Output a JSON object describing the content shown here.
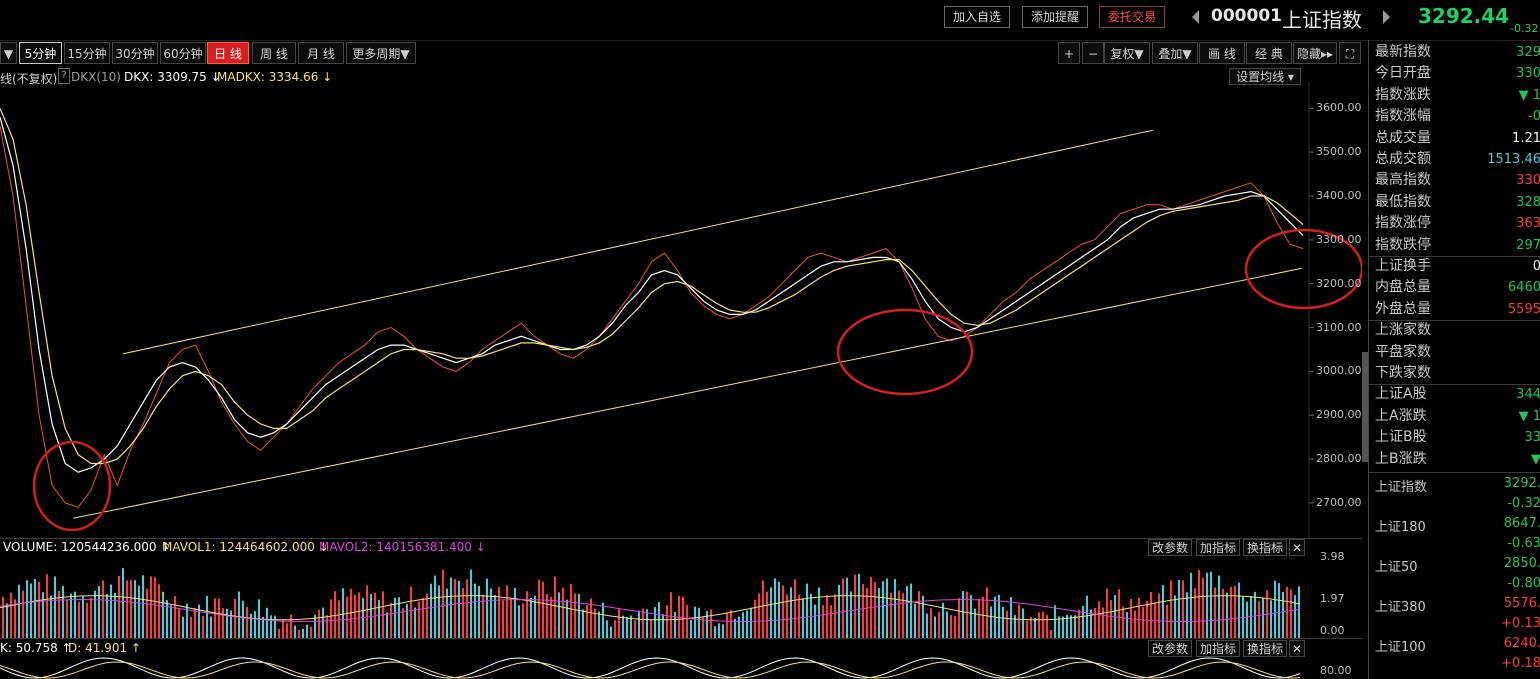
{
  "colors": {
    "up": "#ff3b3b",
    "down": "#22c55e",
    "price_line": "#e8553a",
    "ma_white": "#ffffff",
    "ma_yellow": "#f5e36a",
    "channel": "#f0e080",
    "circle": "#d21f1f",
    "magenta": "#e040e0",
    "cyan": "#40d0e0"
  },
  "top": {
    "buttons": [
      "加入自选",
      "添加提醒",
      "委托交易"
    ],
    "symbol_code": "000001",
    "symbol_name": "上证指数",
    "price": "3292.44",
    "change": "-0.32"
  },
  "periods": [
    "▼",
    "5分钟",
    "15分钟",
    "30分钟",
    "60分钟",
    "日 线",
    "周 线",
    "月 线",
    "更多周期▼"
  ],
  "tools": [
    "+",
    "−",
    "复权▼",
    "叠加▼",
    "画 线",
    "经 典",
    "隐藏▸▸",
    "⛶"
  ],
  "indicator_main": {
    "prefix": "线(不复权)",
    "dkx_label": "DKX(10)",
    "dkx_value": "DKX: 3309.75 ↓",
    "madkx_value": "MADKX: 3334.66 ↓",
    "settings": "设置均线 ▾"
  },
  "indicator_volume": {
    "volume": "VOLUME: 120544236.000 ↑",
    "mavol1": "MAVOL1: 124464602.000 ↓",
    "mavol2": "MAVOL2: 140156381.400 ↓"
  },
  "indicator_kd": {
    "k": "K: 50.758 ↑",
    "d": "D: 41.901 ↑"
  },
  "panel_buttons": [
    "改参数",
    "加指标",
    "换指标",
    "✕"
  ],
  "price_axis": [
    "3600.00",
    "3500.00",
    "3400.00",
    "3300.00",
    "3200.00",
    "3100.00",
    "3000.00",
    "2900.00",
    "2800.00",
    "2700.00"
  ],
  "volume_axis": [
    "3.98",
    "1.97",
    "0.00"
  ],
  "kd_axis": [
    "80.00"
  ],
  "right_panel": {
    "stats": [
      {
        "label": "最新指数",
        "value": "329",
        "color": "down"
      },
      {
        "label": "今日开盘",
        "value": "330",
        "color": "down"
      },
      {
        "label": "指数涨跌",
        "value": "▼ 1",
        "color": "down"
      },
      {
        "label": "指数涨幅",
        "value": "-0",
        "color": "down"
      },
      {
        "label": "总成交量",
        "value": "1.21",
        "color": "plain"
      },
      {
        "label": "总成交额",
        "value": "1513.46",
        "color": "cyan"
      },
      {
        "label": "最高指数",
        "value": "330",
        "color": "up"
      },
      {
        "label": "最低指数",
        "value": "328",
        "color": "down"
      },
      {
        "label": "指数涨停",
        "value": "363",
        "color": "up"
      },
      {
        "label": "指数跌停",
        "value": "297",
        "color": "down"
      },
      {
        "label": "上证换手",
        "value": "0",
        "color": "plain"
      },
      {
        "label": "内盘总量",
        "value": "6460",
        "color": "down"
      },
      {
        "label": "外盘总量",
        "value": "5595",
        "color": "up"
      },
      {
        "label": "上涨家数",
        "value": "",
        "color": "up"
      },
      {
        "label": "平盘家数",
        "value": "",
        "color": "plain"
      },
      {
        "label": "下跌家数",
        "value": "",
        "color": "down"
      },
      {
        "label": "上证A股",
        "value": "344",
        "color": "down"
      },
      {
        "label": "上A涨跌",
        "value": "▼ 1",
        "color": "down"
      },
      {
        "label": "上证B股",
        "value": "33",
        "color": "down"
      },
      {
        "label": "上B涨跌",
        "value": "▼",
        "color": "down"
      }
    ],
    "indices": [
      {
        "name": "上证指数",
        "value": "3292.",
        "change": "-0.32",
        "color": "down"
      },
      {
        "name": "上证180",
        "value": "8647.",
        "change": "-0.63",
        "color": "down"
      },
      {
        "name": "上证50",
        "value": "2850.",
        "change": "-0.80",
        "color": "down"
      },
      {
        "name": "上证380",
        "value": "5576.",
        "change": "+0.13",
        "color": "up"
      },
      {
        "name": "上证100",
        "value": "6240.",
        "change": "+0.18",
        "color": "up"
      }
    ]
  },
  "chart_data": {
    "type": "line",
    "title": "",
    "ylabel": "",
    "ylim": [
      2620,
      3660
    ],
    "series": [
      {
        "name": "",
        "color": "price_line",
        "values": [
          3560,
          3400,
          3150,
          2900,
          2740,
          2700,
          2690,
          2730,
          2810,
          2740,
          2820,
          2880,
          2950,
          3020,
          3050,
          3060,
          3000,
          2930,
          2880,
          2840,
          2820,
          2850,
          2880,
          2920,
          2960,
          2990,
          3020,
          3040,
          3060,
          3090,
          3100,
          3080,
          3050,
          3030,
          3010,
          3000,
          3020,
          3050,
          3070,
          3090,
          3110,
          3080,
          3060,
          3040,
          3030,
          3050,
          3080,
          3120,
          3160,
          3200,
          3250,
          3270,
          3230,
          3180,
          3150,
          3130,
          3120,
          3130,
          3150,
          3170,
          3200,
          3230,
          3260,
          3270,
          3260,
          3250,
          3260,
          3270,
          3280,
          3250,
          3190,
          3120,
          3080,
          3070,
          3080,
          3100,
          3130,
          3160,
          3180,
          3210,
          3230,
          3250,
          3270,
          3290,
          3300,
          3330,
          3360,
          3370,
          3380,
          3380,
          3370,
          3380,
          3390,
          3400,
          3410,
          3420,
          3430,
          3400,
          3340,
          3290,
          3280
        ]
      },
      {
        "name": "DKX",
        "color": "ma_white",
        "values": [
          3580,
          3470,
          3280,
          3050,
          2880,
          2790,
          2770,
          2780,
          2800,
          2830,
          2880,
          2930,
          2980,
          3010,
          3020,
          3010,
          2980,
          2940,
          2890,
          2860,
          2850,
          2860,
          2880,
          2910,
          2940,
          2970,
          2990,
          3010,
          3030,
          3050,
          3060,
          3060,
          3050,
          3040,
          3030,
          3020,
          3030,
          3040,
          3060,
          3070,
          3080,
          3070,
          3060,
          3050,
          3050,
          3060,
          3080,
          3110,
          3150,
          3180,
          3220,
          3230,
          3220,
          3190,
          3160,
          3140,
          3130,
          3130,
          3140,
          3160,
          3180,
          3200,
          3220,
          3240,
          3250,
          3250,
          3255,
          3260,
          3260,
          3250,
          3210,
          3160,
          3120,
          3100,
          3090,
          3100,
          3120,
          3140,
          3160,
          3180,
          3200,
          3220,
          3240,
          3260,
          3280,
          3300,
          3330,
          3350,
          3360,
          3370,
          3370,
          3375,
          3380,
          3390,
          3400,
          3405,
          3410,
          3400,
          3370,
          3340,
          3310
        ]
      },
      {
        "name": "MADKX",
        "color": "ma_yellow",
        "values": [
          3600,
          3530,
          3380,
          3180,
          2990,
          2870,
          2810,
          2790,
          2790,
          2800,
          2830,
          2870,
          2920,
          2960,
          2990,
          3000,
          2990,
          2970,
          2930,
          2900,
          2880,
          2870,
          2870,
          2890,
          2910,
          2940,
          2960,
          2980,
          3000,
          3020,
          3040,
          3050,
          3050,
          3045,
          3040,
          3030,
          3030,
          3035,
          3045,
          3055,
          3065,
          3065,
          3060,
          3055,
          3050,
          3055,
          3065,
          3085,
          3115,
          3145,
          3180,
          3200,
          3205,
          3195,
          3175,
          3155,
          3140,
          3135,
          3135,
          3145,
          3160,
          3175,
          3195,
          3215,
          3230,
          3240,
          3245,
          3250,
          3255,
          3255,
          3230,
          3195,
          3160,
          3130,
          3110,
          3105,
          3110,
          3125,
          3140,
          3160,
          3180,
          3200,
          3220,
          3240,
          3260,
          3280,
          3300,
          3320,
          3340,
          3355,
          3365,
          3370,
          3375,
          3380,
          3385,
          3390,
          3400,
          3400,
          3385,
          3360,
          3335
        ]
      },
      {
        "name": "",
        "color": "channel",
        "values": [
          3040,
          3550
        ]
      },
      {
        "name": "",
        "color": "channel",
        "values": [
          2665,
          3235
        ]
      }
    ]
  }
}
